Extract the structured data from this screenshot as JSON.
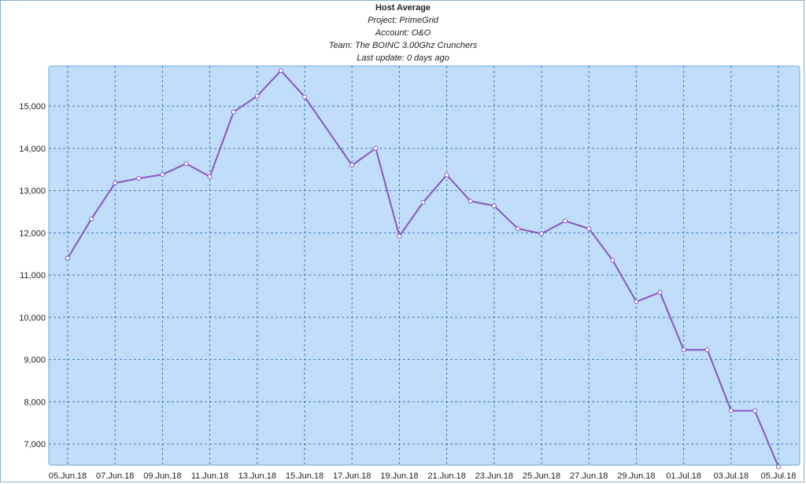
{
  "chart_data": {
    "type": "line",
    "title": "Host Average",
    "subtitles": [
      "Project: PrimeGrid",
      "Account: O&O",
      "Team: The BOINC 3.00Ghz Crunchers",
      "Last update: 0 days ago"
    ],
    "xlabel": "",
    "ylabel": "",
    "x_tick_labels": [
      "05.Jun.18",
      "07.Jun.18",
      "09.Jun.18",
      "11.Jun.18",
      "13.Jun.18",
      "15.Jun.18",
      "17.Jun.18",
      "19.Jun.18",
      "21.Jun.18",
      "23.Jun.18",
      "25.Jun.18",
      "27.Jun.18",
      "29.Jun.18",
      "01.Jul.18",
      "03.Jul.18",
      "05.Jul.18"
    ],
    "y_ticks": [
      7000,
      8000,
      9000,
      10000,
      11000,
      12000,
      13000,
      14000,
      15000
    ],
    "y_tick_labels": [
      "7,000",
      "8,000",
      "9,000",
      "10,000",
      "11,000",
      "12,000",
      "13,000",
      "14,000",
      "15,000"
    ],
    "ylim": [
      6500,
      15950
    ],
    "grid": true,
    "colors": {
      "plot_bg": "#c0defa",
      "grid": "#3f7fbf",
      "line": "#8a55c2",
      "frame": "#6fa8d6"
    },
    "series": [
      {
        "x": [
          "05.Jun.18",
          "06.Jun.18",
          "07.Jun.18",
          "08.Jun.18",
          "09.Jun.18",
          "10.Jun.18",
          "11.Jun.18",
          "12.Jun.18",
          "13.Jun.18",
          "14.Jun.18",
          "15.Jun.18",
          "17.Jun.18",
          "18.Jun.18",
          "19.Jun.18",
          "20.Jun.18",
          "21.Jun.18",
          "22.Jun.18",
          "23.Jun.18",
          "24.Jun.18",
          "25.Jun.18",
          "26.Jun.18",
          "27.Jun.18",
          "28.Jun.18",
          "29.Jun.18",
          "30.Jun.18",
          "01.Jul.18",
          "02.Jul.18",
          "03.Jul.18",
          "04.Jul.18",
          "05.Jul.18"
        ],
        "values": [
          11400,
          12330,
          13180,
          13290,
          13380,
          13640,
          13330,
          14860,
          15240,
          15840,
          15220,
          13600,
          14000,
          11920,
          12720,
          13370,
          12750,
          12640,
          12100,
          11980,
          12280,
          12100,
          11350,
          10370,
          10590,
          9230,
          9230,
          7790,
          7790,
          6460
        ]
      }
    ]
  }
}
